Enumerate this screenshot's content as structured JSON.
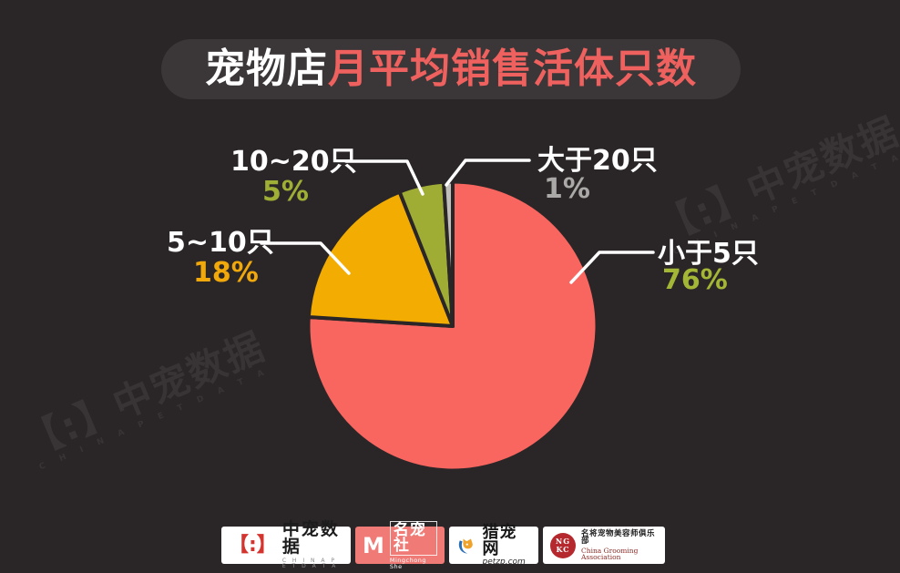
{
  "title": {
    "prefix": "宠物店",
    "highlight": "月平均销售活体只数"
  },
  "colors": {
    "background": "#2a2627",
    "title_pill": "#3b3738",
    "title_highlight": "#ee615e",
    "leader_line": "#ffffff",
    "slice_gap": "#2a2627"
  },
  "chart_data": {
    "type": "pie",
    "title": "宠物店月平均销售活体只数",
    "unit": "%",
    "start_angle_deg": 0,
    "direction": "clockwise",
    "legend_position": "callout-labels",
    "slices": [
      {
        "label": "小于5只",
        "value": 76,
        "color": "#f9655f",
        "pct_text": "76%",
        "pct_color": "#a4b636"
      },
      {
        "label": "5~10只",
        "value": 18,
        "color": "#f3ac02",
        "pct_text": "18%",
        "pct_color": "#f0a80b"
      },
      {
        "label": "10~20只",
        "value": 5,
        "color": "#a0ad35",
        "pct_text": "5%",
        "pct_color": "#9fae35"
      },
      {
        "label": "大于20只",
        "value": 1,
        "color": "#c0bfbc",
        "pct_text": "1%",
        "pct_color": "#aaa9a7"
      }
    ]
  },
  "watermark": {
    "text": "【:】中宠数据",
    "subtext": "C H I N A  P E T  D A T A"
  },
  "footer_logos": [
    {
      "id": "china-pet-data",
      "icon_glyph": "【:】",
      "cn": "中宠数据",
      "en": "C H I N A  P E T  D A T A"
    },
    {
      "id": "mingchongshe",
      "icon_glyph": "M",
      "cn": "名宠社",
      "en": "Mingchong She",
      "bg": "#ef7a76"
    },
    {
      "id": "petzp",
      "cn": "猎宠网",
      "en": "petzp.com"
    },
    {
      "id": "ngkc",
      "seal_top": "NG",
      "seal_bottom": "KC",
      "cn": "名将宠物美容师俱乐部",
      "en": "China Grooming Association"
    }
  ]
}
